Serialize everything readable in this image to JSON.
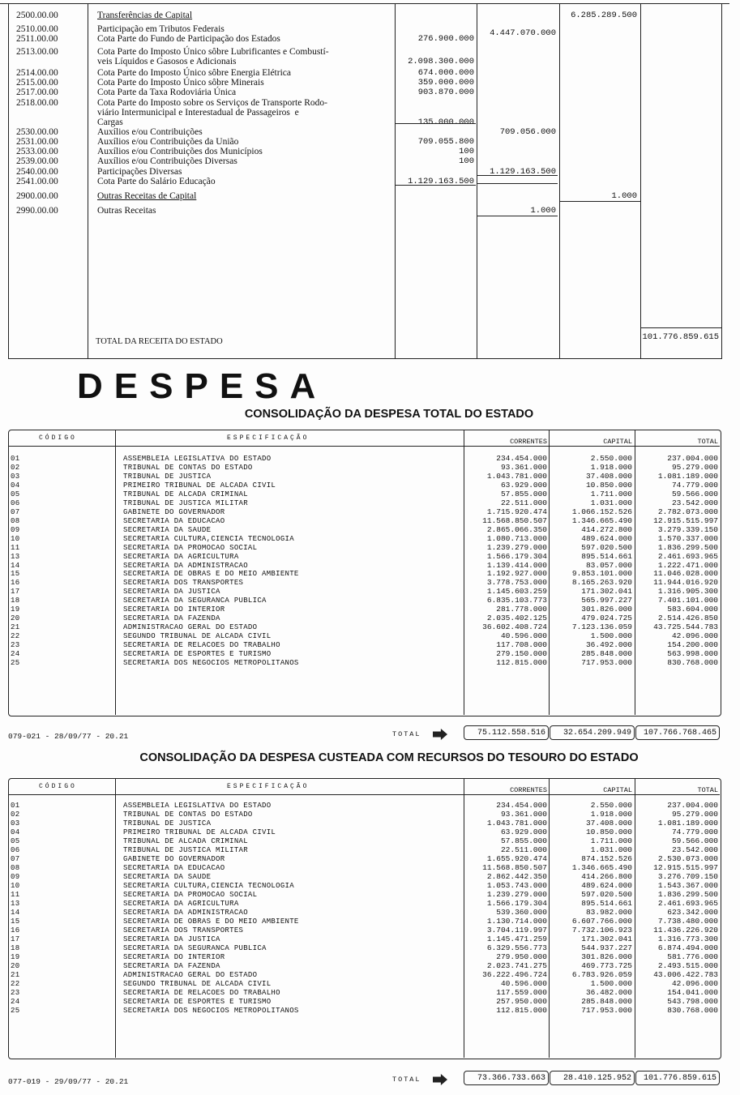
{
  "receita": {
    "rows": [
      {
        "code": "2500.00.00",
        "desc": "Transferências de Capital",
        "underline": true,
        "col": 3,
        "value": "6.285.289.500"
      },
      {
        "code": "2510.00.00",
        "desc": "Participação em Tributos Federais",
        "col": 2,
        "value": "4.447.070.000"
      },
      {
        "code": "2511.00.00",
        "desc": "Cota Parte do Fundo de Participação dos Estados",
        "col": 1,
        "value": "276.900.000"
      },
      {
        "code": "2513.00.00",
        "desc": "Cota Parte do Imposto Único sôbre Lubrificantes e Combustí-\nveis Líquidos e Gasosos e Adicionais",
        "col": 1,
        "value": "2.098.300.000"
      },
      {
        "code": "2514.00.00",
        "desc": "Cota Parte do Imposto Único sôbre Energia Elétrica",
        "col": 1,
        "value": "674.000.000"
      },
      {
        "code": "2515.00.00",
        "desc": "Cota Parte do Imposto Único sôbre Minerais",
        "col": 1,
        "value": "359.000.000"
      },
      {
        "code": "2517.00.00",
        "desc": "Cota Parte da Taxa Rodoviária Única",
        "col": 1,
        "value": "903.870.000"
      },
      {
        "code": "2518.00.00",
        "desc": "Cota Parte do Imposto sobre os Serviços de Transporte Rodo-\nviário Intermunicipal e Interestadual de Passageiros  e\nCargas",
        "col": 1,
        "value": "135.000.000"
      },
      {
        "code": "2530.00.00",
        "desc": "Auxílios e/ou Contribuições",
        "col": 2,
        "value": "709.056.000"
      },
      {
        "code": "2531.00.00",
        "desc": "Auxílios e/ou Contribuições da União",
        "col": 1,
        "value": "709.055.800"
      },
      {
        "code": "2533.00.00",
        "desc": "Auxílios e/ou Contribuições dos Municípios",
        "col": 1,
        "value": "100"
      },
      {
        "code": "2539.00.00",
        "desc": "Auxílios e/ou Contribuições Diversas",
        "col": 1,
        "value": "100"
      },
      {
        "code": "2540.00.00",
        "desc": "Participações Diversas",
        "col": 2,
        "value": "1.129.163.500"
      },
      {
        "code": "2541.00.00",
        "desc": "Cota Parte do Salário Educação",
        "col": 1,
        "value": "1.129.163.500"
      },
      {
        "code": "2900.00.00",
        "desc": "Outras Receitas de Capital",
        "underline": true,
        "col": 3,
        "value": "1.000"
      },
      {
        "code": "2990.00.00",
        "desc": "Outras Receitas",
        "col": 2,
        "value": "1.000"
      }
    ],
    "total_label": "TOTAL DA RECEITA DO ESTADO",
    "total_value": "101.776.859.615"
  },
  "section_title": "DESPESA",
  "headers": {
    "codigo": "CÓDIGO",
    "especificacao": "ESPECIFICAÇÃO",
    "correntes": "CORRENTES",
    "capital": "CAPITAL",
    "total": "TOTAL"
  },
  "total_label": "TOTAL",
  "tables": [
    {
      "title": "CONSOLIDAÇÃO DA DESPESA TOTAL DO ESTADO",
      "footer_ref": "079-021 - 28/09/77 - 20.21",
      "totals": [
        "75.112.558.516",
        "32.654.209.949",
        "107.766.768.465"
      ],
      "rows": [
        [
          "01",
          "ASSEMBLEIA LEGISLATIVA DO ESTADO",
          "234.454.000",
          "2.550.000",
          "237.004.000"
        ],
        [
          "02",
          "TRIBUNAL DE CONTAS DO ESTADO",
          "93.361.000",
          "1.918.000",
          "95.279.000"
        ],
        [
          "03",
          "TRIBUNAL DE JUSTICA",
          "1.043.781.000",
          "37.408.000",
          "1.081.189.000"
        ],
        [
          "04",
          "PRIMEIRO TRIBUNAL DE ALCADA CIVIL",
          "63.929.000",
          "10.850.000",
          "74.779.000"
        ],
        [
          "05",
          "TRIBUNAL DE ALCADA CRIMINAL",
          "57.855.000",
          "1.711.000",
          "59.566.000"
        ],
        [
          "06",
          "TRIBUNAL DE JUSTICA MILITAR",
          "22.511.000",
          "1.031.000",
          "23.542.000"
        ],
        [
          "07",
          "GABINETE DO GOVERNADOR",
          "1.715.920.474",
          "1.066.152.526",
          "2.782.073.000"
        ],
        [
          "08",
          "SECRETARIA DA EDUCACAO",
          "11.568.850.507",
          "1.346.665.490",
          "12.915.515.997"
        ],
        [
          "09",
          "SECRETARIA DA SAUDE",
          "2.865.066.350",
          "414.272.800",
          "3.279.339.150"
        ],
        [
          "10",
          "SECRETARIA CULTURA,CIENCIA TECNOLOGIA",
          "1.080.713.000",
          "489.624.000",
          "1.570.337.000"
        ],
        [
          "11",
          "SECRETARIA DA PROMOCAO SOCIAL",
          "1.239.279.000",
          "597.020.500",
          "1.836.299.500"
        ],
        [
          "13",
          "SECRETARIA DA AGRICULTURA",
          "1.566.179.304",
          "895.514.661",
          "2.461.693.965"
        ],
        [
          "14",
          "SECRETARIA DA ADMINISTRACAO",
          "1.139.414.000",
          "83.057.000",
          "1.222.471.000"
        ],
        [
          "15",
          "SECRETARIA DE OBRAS E DO MEIO AMBIENTE",
          "1.192.927.000",
          "9.853.101.000",
          "11.046.028.000"
        ],
        [
          "16",
          "SECRETARIA DOS TRANSPORTES",
          "3.778.753.000",
          "8.165.263.920",
          "11.944.016.920"
        ],
        [
          "17",
          "SECRETARIA DA JUSTICA",
          "1.145.603.259",
          "171.302.041",
          "1.316.905.300"
        ],
        [
          "18",
          "SECRETARIA DA SEGURANCA PUBLICA",
          "6.835.103.773",
          "565.997.227",
          "7.401.101.000"
        ],
        [
          "19",
          "SECRETARIA DO INTERIOR",
          "281.778.000",
          "301.826.000",
          "583.604.000"
        ],
        [
          "20",
          "SECRETARIA DA FAZENDA",
          "2.035.402.125",
          "479.024.725",
          "2.514.426.850"
        ],
        [
          "21",
          "ADMINISTRACAO GERAL DO ESTADO",
          "36.602.408.724",
          "7.123.136.059",
          "43.725.544.783"
        ],
        [
          "22",
          "SEGUNDO TRIBUNAL DE ALCADA CIVIL",
          "40.596.000",
          "1.500.000",
          "42.096.000"
        ],
        [
          "23",
          "SECRETARIA DE RELACOES DO TRABALHO",
          "117.708.000",
          "36.492.000",
          "154.200.000"
        ],
        [
          "24",
          "SECRETARIA DE ESPORTES E TURISMO",
          "279.150.000",
          "285.848.000",
          "563.998.000"
        ],
        [
          "25",
          "SECRETARIA DOS NEGOCIOS METROPOLITANOS",
          "112.815.000",
          "717.953.000",
          "830.768.000"
        ]
      ]
    },
    {
      "title": "CONSOLIDAÇÃO DA DESPESA CUSTEADA COM  RECURSOS DO TESOURO DO ESTADO",
      "footer_ref": "077-019 - 29/09/77 - 20.21",
      "totals": [
        "73.366.733.663",
        "28.410.125.952",
        "101.776.859.615"
      ],
      "rows": [
        [
          "01",
          "ASSEMBLEIA LEGISLATIVA DO ESTADO",
          "234.454.000",
          "2.550.000",
          "237.004.000"
        ],
        [
          "02",
          "TRIBUNAL DE CONTAS DO ESTADO",
          "93.361.000",
          "1.918.000",
          "95.279.000"
        ],
        [
          "03",
          "TRIBUNAL DE JUSTICA",
          "1.043.781.000",
          "37.408.000",
          "1.081.189.000"
        ],
        [
          "04",
          "PRIMEIRO TRIBUNAL DE ALCADA CIVIL",
          "63.929.000",
          "10.850.000",
          "74.779.000"
        ],
        [
          "05",
          "TRIBUNAL DE ALCADA CRIMINAL",
          "57.855.000",
          "1.711.000",
          "59.566.000"
        ],
        [
          "06",
          "TRIBUNAL DE JUSTICA MILITAR",
          "22.511.000",
          "1.031.000",
          "23.542.000"
        ],
        [
          "07",
          "GABINETE DO GOVERNADOR",
          "1.655.920.474",
          "874.152.526",
          "2.530.073.000"
        ],
        [
          "08",
          "SECRETARIA DA EDUCACAO",
          "11.568.850.507",
          "1.346.665.490",
          "12.915.515.997"
        ],
        [
          "09",
          "SECRETARIA DA SAUDE",
          "2.862.442.350",
          "414.266.800",
          "3.276.709.150"
        ],
        [
          "10",
          "SECRETARIA CULTURA,CIENCIA TECNOLOGIA",
          "1.053.743.000",
          "489.624.000",
          "1.543.367.000"
        ],
        [
          "11",
          "SECRETARIA DA PROMOCAO SOCIAL",
          "1.239.279.000",
          "597.020.500",
          "1.836.299.500"
        ],
        [
          "13",
          "SECRETARIA DA AGRICULTURA",
          "1.566.179.304",
          "895.514.661",
          "2.461.693.965"
        ],
        [
          "14",
          "SECRETARIA DA ADMINISTRACAO",
          "539.360.000",
          "83.982.000",
          "623.342.000"
        ],
        [
          "15",
          "SECRETARIA DE OBRAS E DO MEIO AMBIENTE",
          "1.130.714.000",
          "6.607.766.000",
          "7.738.480.000"
        ],
        [
          "16",
          "SECRETARIA DOS TRANSPORTES",
          "3.704.119.997",
          "7.732.106.923",
          "11.436.226.920"
        ],
        [
          "17",
          "SECRETARIA DA JUSTICA",
          "1.145.471.259",
          "171.302.041",
          "1.316.773.300"
        ],
        [
          "18",
          "SECRETARIA DA SEGURANCA PUBLICA",
          "6.329.556.773",
          "544.937.227",
          "6.874.494.000"
        ],
        [
          "19",
          "SECRETARIA DO INTERIOR",
          "279.950.000",
          "301.826.000",
          "581.776.000"
        ],
        [
          "20",
          "SECRETARIA DA FAZENDA",
          "2.023.741.275",
          "469.773.725",
          "2.493.515.000"
        ],
        [
          "21",
          "ADMINISTRACAO GERAL DO ESTADO",
          "36.222.496.724",
          "6.783.926.059",
          "43.006.422.783"
        ],
        [
          "22",
          "SEGUNDO TRIBUNAL DE ALCADA CIVIL",
          "40.596.000",
          "1.500.000",
          "42.096.000"
        ],
        [
          "23",
          "SECRETARIA DE RELACOES DO TRABALHO",
          "117.559.000",
          "36.482.000",
          "154.041.000"
        ],
        [
          "24",
          "SECRETARIA DE ESPORTES E TURISMO",
          "257.950.000",
          "285.848.000",
          "543.798.000"
        ],
        [
          "25",
          "SECRETARIA DOS NEGOCIOS METROPOLITANOS",
          "112.815.000",
          "717.953.000",
          "830.768.000"
        ]
      ]
    }
  ]
}
